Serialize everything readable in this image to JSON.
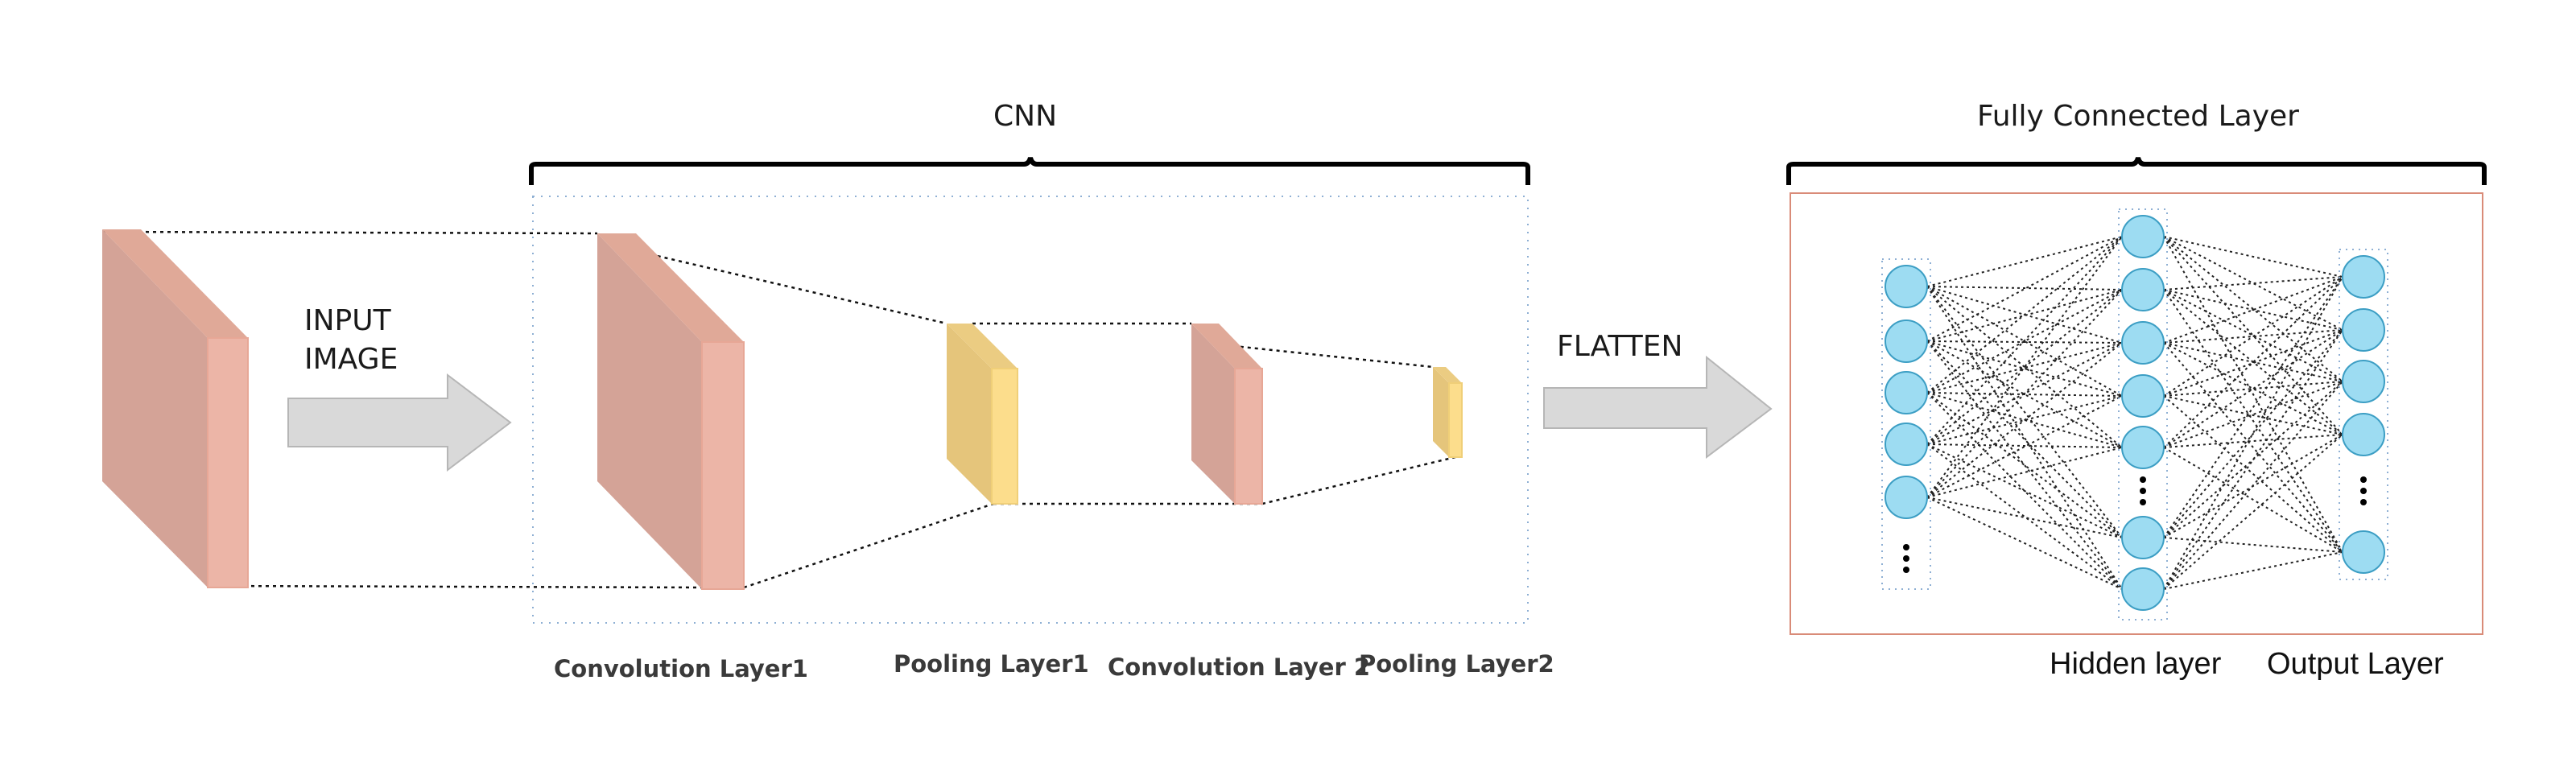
{
  "groups": {
    "cnn": "CNN",
    "fully_connected": "Fully Connected Layer"
  },
  "arrows": {
    "input_line1": "INPUT",
    "input_line2": "IMAGE",
    "flatten": "FLATTEN"
  },
  "cnn_layers": {
    "conv1": "Convolution Layer1",
    "pool1": "Pooling Layer1",
    "conv2": "Convolution Layer 2",
    "pool2": "Pooling Layer2"
  },
  "fc_layers": {
    "hidden": "Hidden layer",
    "output": "Output Layer"
  },
  "colors": {
    "conv_front": "#d4a397",
    "conv_side": "#ecb5a7",
    "pool_front": "#e5c57b",
    "pool_side": "#fcdd8c",
    "neuron_fill": "#9ddcf2",
    "neuron_stroke": "#3c9ec4",
    "arrow_fill": "#d9d9d9",
    "fc_border": "#d98b78"
  },
  "network": {
    "input_neurons_shown": 5,
    "hidden_neurons_shown": 7,
    "output_neurons_shown": 5,
    "ellipsis": "⋮"
  }
}
